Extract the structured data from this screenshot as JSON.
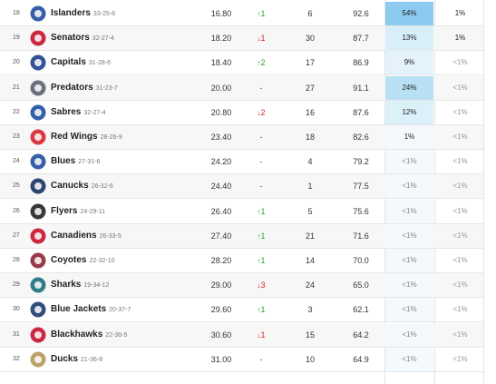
{
  "rows": [
    {
      "rank": "18",
      "name": "Islanders",
      "record": "33-25-8",
      "avg": "16.80",
      "move": {
        "dir": "up",
        "text": "1"
      },
      "c4": "6",
      "c5": "92.6",
      "c6": "54%",
      "c7": "1%",
      "c6_color": "#8ccbef",
      "logo": "islanders-logo-icon",
      "logo_color": "#1f4fa0"
    },
    {
      "rank": "19",
      "name": "Senators",
      "record": "32-27-4",
      "avg": "18.20",
      "move": {
        "dir": "down",
        "text": "1"
      },
      "c4": "30",
      "c5": "87.7",
      "c6": "13%",
      "c7": "1%",
      "c6_color": "#d8eef9",
      "logo": "senators-logo-icon",
      "logo_color": "#c8102e"
    },
    {
      "rank": "20",
      "name": "Capitals",
      "record": "31-28-6",
      "avg": "18.40",
      "move": {
        "dir": "up",
        "text": "2"
      },
      "c4": "17",
      "c5": "86.9",
      "c6": "9%",
      "c7": "<1%",
      "c6_color": "#e4f2fa",
      "logo": "capitals-logo-icon",
      "logo_color": "#1d3f8a"
    },
    {
      "rank": "21",
      "name": "Predators",
      "record": "31-23-7",
      "avg": "20.00",
      "move": {
        "dir": "none",
        "text": "-"
      },
      "c4": "27",
      "c5": "91.1",
      "c6": "24%",
      "c7": "<1%",
      "c6_color": "#b8e0f5",
      "logo": "predators-logo-icon",
      "logo_color": "#5a6270"
    },
    {
      "rank": "22",
      "name": "Sabres",
      "record": "32-27-4",
      "avg": "20.80",
      "move": {
        "dir": "down",
        "text": "2"
      },
      "c4": "16",
      "c5": "87.6",
      "c6": "12%",
      "c7": "<1%",
      "c6_color": "#dcf0fa",
      "logo": "sabres-logo-icon",
      "logo_color": "#1d4ea0"
    },
    {
      "rank": "23",
      "name": "Red Wings",
      "record": "28-26-9",
      "avg": "23.40",
      "move": {
        "dir": "none",
        "text": "-"
      },
      "c4": "18",
      "c5": "82.6",
      "c6": "1%",
      "c7": "<1%",
      "c6_color": "#f3f9fd",
      "logo": "red-wings-logo-icon",
      "logo_color": "#d8242e"
    },
    {
      "rank": "24",
      "name": "Blues",
      "record": "27-31-6",
      "avg": "24.20",
      "move": {
        "dir": "none",
        "text": "-"
      },
      "c4": "4",
      "c5": "79.2",
      "c6": "<1%",
      "c7": "<1%",
      "c6_color": "#f3f9fd",
      "logo": "blues-logo-icon",
      "logo_color": "#1f4f9e"
    },
    {
      "rank": "25",
      "name": "Canucks",
      "record": "26-32-6",
      "avg": "24.40",
      "move": {
        "dir": "none",
        "text": "-"
      },
      "c4": "1",
      "c5": "77.5",
      "c6": "<1%",
      "c7": "<1%",
      "c6_color": "#f3f9fd",
      "logo": "canucks-logo-icon",
      "logo_color": "#17325e"
    },
    {
      "rank": "26",
      "name": "Flyers",
      "record": "24-29-11",
      "avg": "26.40",
      "move": {
        "dir": "up",
        "text": "1"
      },
      "c4": "5",
      "c5": "75.6",
      "c6": "<1%",
      "c7": "<1%",
      "c6_color": "#f3f9fd",
      "logo": "flyers-logo-icon",
      "logo_color": "#222222"
    },
    {
      "rank": "27",
      "name": "Canadiens",
      "record": "26-33-5",
      "avg": "27.40",
      "move": {
        "dir": "up",
        "text": "1"
      },
      "c4": "21",
      "c5": "71.6",
      "c6": "<1%",
      "c7": "<1%",
      "c6_color": "#f3f9fd",
      "logo": "canadiens-logo-icon",
      "logo_color": "#c8102e"
    },
    {
      "rank": "28",
      "name": "Coyotes",
      "record": "22-32-10",
      "avg": "28.20",
      "move": {
        "dir": "up",
        "text": "1"
      },
      "c4": "14",
      "c5": "70.0",
      "c6": "<1%",
      "c7": "<1%",
      "c6_color": "#f3f9fd",
      "logo": "coyotes-logo-icon",
      "logo_color": "#8c2633"
    },
    {
      "rank": "29",
      "name": "Sharks",
      "record": "19-34-12",
      "avg": "29.00",
      "move": {
        "dir": "down",
        "text": "3"
      },
      "c4": "24",
      "c5": "65.0",
      "c6": "<1%",
      "c7": "<1%",
      "c6_color": "#f3f9fd",
      "logo": "sharks-logo-icon",
      "logo_color": "#1a6e7a"
    },
    {
      "rank": "30",
      "name": "Blue Jackets",
      "record": "20-37-7",
      "avg": "29.60",
      "move": {
        "dir": "up",
        "text": "1"
      },
      "c4": "3",
      "c5": "62.1",
      "c6": "<1%",
      "c7": "<1%",
      "c6_color": "#f3f9fd",
      "logo": "blue-jackets-logo-icon",
      "logo_color": "#1a3a6e"
    },
    {
      "rank": "31",
      "name": "Blackhawks",
      "record": "22-36-5",
      "avg": "30.60",
      "move": {
        "dir": "down",
        "text": "1"
      },
      "c4": "15",
      "c5": "64.2",
      "c6": "<1%",
      "c7": "<1%",
      "c6_color": "#f3f9fd",
      "logo": "blackhawks-logo-icon",
      "logo_color": "#c8102e"
    },
    {
      "rank": "32",
      "name": "Ducks",
      "record": "21-36-8",
      "avg": "31.00",
      "move": {
        "dir": "none",
        "text": "-"
      },
      "c4": "10",
      "c5": "64.9",
      "c6": "<1%",
      "c7": "<1%",
      "c6_color": "#f3f9fd",
      "logo": "ducks-logo-icon",
      "logo_color": "#b5985a"
    }
  ],
  "colors": {
    "up": "#2aa02a",
    "down": "#d62020"
  }
}
